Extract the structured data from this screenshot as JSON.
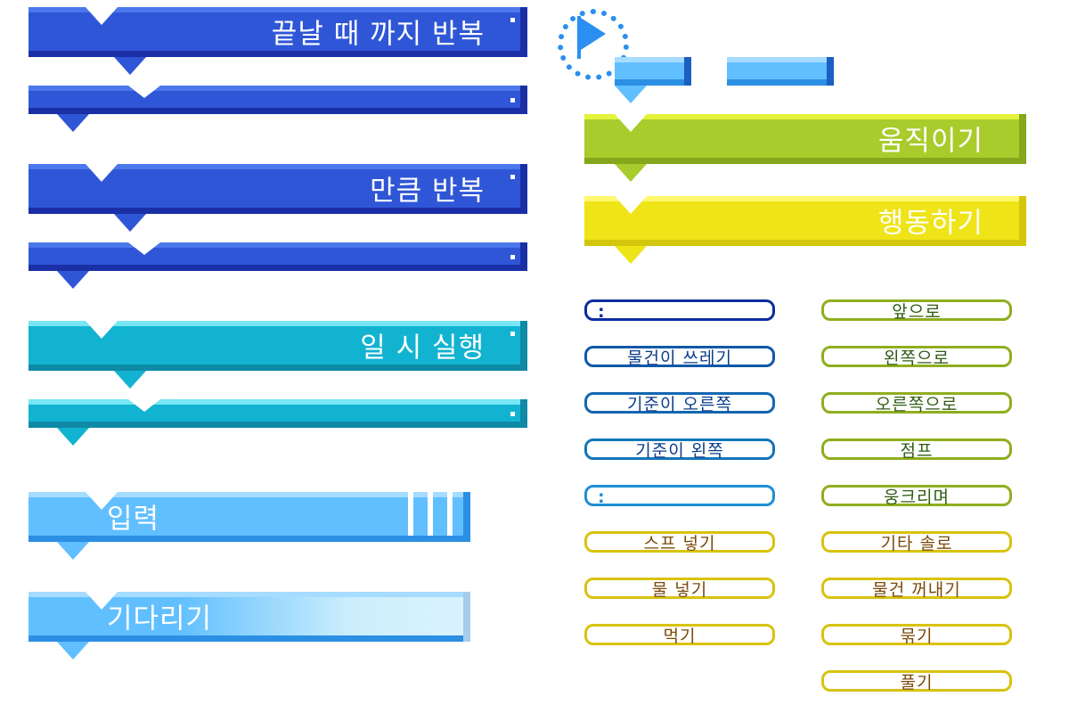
{
  "loop_blocks": {
    "repeat_until": "끝날 때 까지 반복",
    "repeat_times": "만큼 반복",
    "pause": "일 시 실행"
  },
  "input_block": {
    "label": "입력"
  },
  "wait_block": {
    "label": "기다리기"
  },
  "category_blocks": {
    "move": "움직이기",
    "action": "행동하기"
  },
  "left_pills": [
    {
      "label": "",
      "prefix": ":",
      "color": "#0a2e9e",
      "text_color": "#0a2e9e"
    },
    {
      "label": "물건이 쓰레기",
      "prefix": "",
      "color": "#0f59a8",
      "text_color": "#0a3d8a"
    },
    {
      "label": "기준이 오른쪽",
      "prefix": "",
      "color": "#1266b0",
      "text_color": "#0a3d8a"
    },
    {
      "label": "기준이 왼쪽",
      "prefix": "",
      "color": "#1476b8",
      "text_color": "#0a3d8a"
    },
    {
      "label": "",
      "prefix": ":",
      "color": "#1d8fd6",
      "text_color": "#1d8fd6"
    },
    {
      "label": "스프 넣기",
      "prefix": "",
      "color": "#d9c20f",
      "text_color": "#7a4a0a"
    },
    {
      "label": "물 넣기",
      "prefix": "",
      "color": "#d9c20f",
      "text_color": "#7a4a0a"
    },
    {
      "label": "먹기",
      "prefix": "",
      "color": "#d9c20f",
      "text_color": "#7a4a0a"
    }
  ],
  "right_pills": [
    {
      "label": "앞으로",
      "color": "#8fae1e",
      "text_color": "#2e5c12"
    },
    {
      "label": "왼쪽으로",
      "color": "#8fae1e",
      "text_color": "#2e5c12"
    },
    {
      "label": "오른쪽으로",
      "color": "#8fae1e",
      "text_color": "#2e5c12"
    },
    {
      "label": "점프",
      "color": "#8fae1e",
      "text_color": "#2e5c12"
    },
    {
      "label": "웅크리며",
      "color": "#8fae1e",
      "text_color": "#2e5c12"
    },
    {
      "label": "기타 솔로",
      "color": "#d9c20f",
      "text_color": "#7a4a0a"
    },
    {
      "label": "물건 꺼내기",
      "color": "#d9c20f",
      "text_color": "#7a4a0a"
    },
    {
      "label": "묶기",
      "color": "#d9c20f",
      "text_color": "#7a4a0a"
    },
    {
      "label": "풀기",
      "color": "#d9c20f",
      "text_color": "#7a4a0a"
    }
  ]
}
